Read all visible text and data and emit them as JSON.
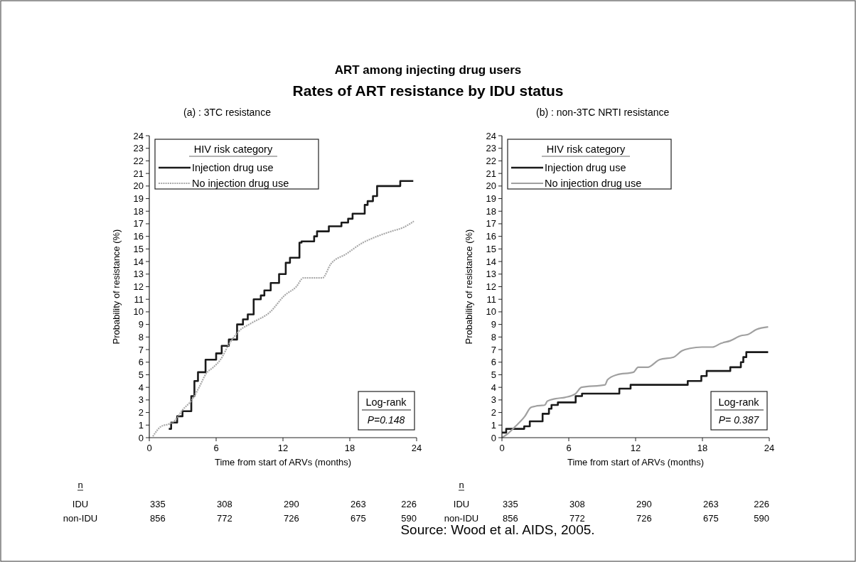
{
  "chart_data": [
    {
      "type": "step",
      "title": "(a) : 3TC resistance",
      "xlabel": "Time from start of ARVs (months)",
      "ylabel": "Probability of resistance (%)",
      "legend_title": "HIV risk category",
      "legend": "top left",
      "xlim": [
        0,
        24
      ],
      "ylim": [
        0,
        24
      ],
      "xticks": [
        0,
        6,
        12,
        18,
        24
      ],
      "yticks": [
        0,
        1,
        2,
        3,
        4,
        5,
        6,
        7,
        8,
        9,
        10,
        11,
        12,
        13,
        14,
        15,
        16,
        17,
        18,
        19,
        20,
        21,
        22,
        23,
        24
      ],
      "grid": false,
      "annotations": [
        "Log-rank",
        "P=0.148",
        "n",
        "IDU 335 308 290 263 226",
        "non-IDU 856 772 726 675 590",
        "ART among injecting drug users",
        "Rates of ART resistance by IDU status"
      ],
      "series": [
        {
          "name": "Injection drug use",
          "type": "step",
          "color": "#1a1a1a",
          "line_style": "solid",
          "x": [
            1.75,
            1.96,
            2.5,
            2.98,
            3.77,
            4.05,
            4.37,
            5.05,
            6.0,
            6.5,
            7.14,
            7.88,
            8.41,
            8.84,
            9.37,
            10.01,
            10.33,
            10.9,
            11.65,
            12.25,
            12.63,
            13.48,
            13.67,
            14.8,
            15.06,
            16.12,
            17.25,
            17.85,
            18.25,
            19.34,
            19.6,
            20.08,
            20.45,
            22.53,
            23.7
          ],
          "values": [
            0.7,
            1.2,
            1.7,
            2.1,
            3.3,
            4.5,
            5.2,
            6.2,
            6.7,
            7.3,
            7.8,
            9.0,
            9.4,
            9.8,
            11.0,
            11.3,
            11.7,
            12.3,
            13.0,
            13.9,
            14.3,
            15.5,
            15.6,
            16.0,
            16.4,
            16.8,
            17.1,
            17.4,
            17.8,
            18.5,
            18.8,
            19.2,
            20.0,
            20.4,
            20.4
          ]
        },
        {
          "name": "No injection drug use",
          "type": "line",
          "color": "#a8a8a8",
          "line_style": "dotted",
          "x": [
            0.32,
            1.07,
            1.81,
            2.34,
            2.98,
            3.83,
            4.47,
            5.11,
            5.75,
            6.39,
            7.14,
            8.09,
            9.16,
            10.86,
            12.14,
            13.2,
            13.84,
            15.55,
            16.29,
            17.68,
            19.17,
            20.45,
            21.73,
            22.79,
            23.75
          ],
          "values": [
            0.1,
            0.9,
            1.1,
            1.4,
            2.2,
            3.0,
            4.0,
            5.1,
            5.6,
            6.2,
            7.4,
            8.5,
            9.1,
            10.0,
            11.3,
            12.0,
            12.7,
            12.7,
            13.8,
            14.6,
            15.5,
            16.0,
            16.4,
            16.7,
            17.2
          ]
        }
      ]
    },
    {
      "type": "step",
      "title": "(b) : non-3TC NRTI resistance",
      "xlabel": "Time from start of ARVs (months)",
      "ylabel": "Probability of resistance (%)",
      "legend_title": "HIV risk category",
      "legend": "top left",
      "xlim": [
        0,
        24
      ],
      "ylim": [
        0,
        24
      ],
      "xticks": [
        0,
        6,
        12,
        18,
        24
      ],
      "yticks": [
        0,
        1,
        2,
        3,
        4,
        5,
        6,
        7,
        8,
        9,
        10,
        11,
        12,
        13,
        14,
        15,
        16,
        17,
        18,
        19,
        20,
        21,
        22,
        23,
        24
      ],
      "grid": false,
      "annotations": [
        "Log-rank",
        "P= 0.387",
        "n",
        "IDU 335 308 290 263 226",
        "non-IDU 856 772 726 675 590",
        "Source: Wood et al. AIDS, 2005."
      ],
      "series": [
        {
          "name": "Injection drug use",
          "type": "step",
          "color": "#1a1a1a",
          "line_style": "solid",
          "x": [
            0,
            0.38,
            2.0,
            2.5,
            3.65,
            4.22,
            4.45,
            5.02,
            6.62,
            7.19,
            10.54,
            11.55,
            16.68,
            17.9,
            18.38,
            20.5,
            21.45,
            21.67,
            21.94,
            23.9
          ],
          "values": [
            0.4,
            0.7,
            0.9,
            1.3,
            1.9,
            2.3,
            2.6,
            2.8,
            3.3,
            3.5,
            3.9,
            4.2,
            4.5,
            4.9,
            5.3,
            5.6,
            6.0,
            6.4,
            6.8,
            6.8
          ]
        },
        {
          "name": "No injection drug use",
          "type": "line",
          "color": "#a0a0a0",
          "line_style": "solid",
          "x": [
            0,
            0.36,
            1.21,
            2.06,
            2.59,
            3.0,
            3.86,
            4.07,
            4.81,
            5.66,
            6.61,
            7.14,
            9.26,
            9.48,
            10.32,
            11.81,
            12.23,
            13.08,
            14.14,
            15.41,
            16.16,
            16.9,
            17.96,
            18.9,
            19.66,
            20.5,
            21.45,
            22.09,
            22.84,
            23.9
          ],
          "values": [
            0,
            0.2,
            0.9,
            1.7,
            2.4,
            2.5,
            2.6,
            2.9,
            3.1,
            3.2,
            3.5,
            4.0,
            4.2,
            4.6,
            5.0,
            5.2,
            5.6,
            5.6,
            6.2,
            6.4,
            6.9,
            7.1,
            7.2,
            7.2,
            7.5,
            7.7,
            8.1,
            8.2,
            8.6,
            8.8
          ]
        }
      ]
    }
  ]
}
